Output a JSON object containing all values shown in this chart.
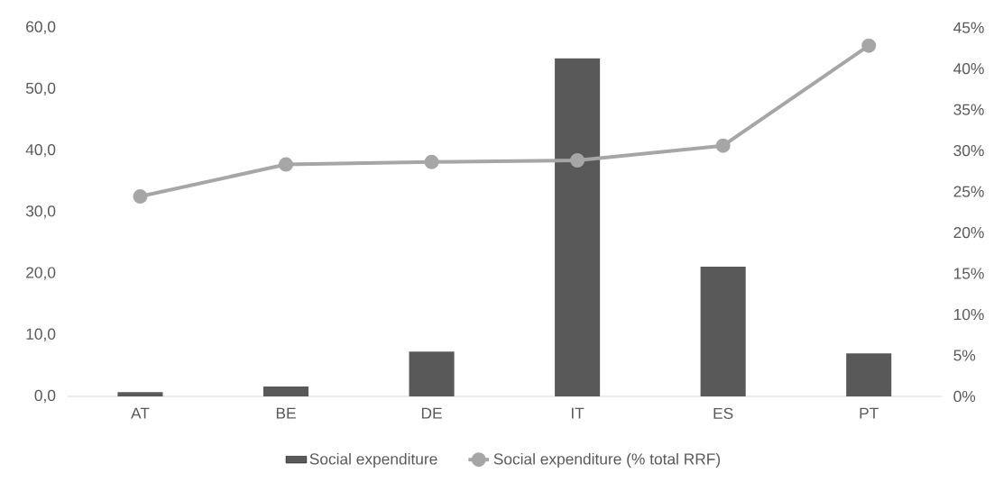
{
  "chart_data": {
    "type": "bar",
    "categories": [
      "AT",
      "BE",
      "DE",
      "IT",
      "ES",
      "PT"
    ],
    "series": [
      {
        "name": "Social expenditure",
        "color": "#595959",
        "values": [
          0.7,
          1.6,
          7.3,
          55.0,
          21.1,
          7.0
        ]
      },
      {
        "name": "Social expenditure (% total RRF)",
        "type": "line",
        "axis": "y2",
        "color": "#a6a6a6",
        "marker": "circle",
        "values": [
          24.4,
          28.3,
          28.6,
          28.8,
          30.6,
          42.8
        ]
      }
    ],
    "ylim": [
      0,
      60
    ],
    "yticks": [
      {
        "value": 0,
        "label": "0,0"
      },
      {
        "value": 10,
        "label": "10,0"
      },
      {
        "value": 20,
        "label": "20,0"
      },
      {
        "value": 30,
        "label": "30,0"
      },
      {
        "value": 40,
        "label": "40,0"
      },
      {
        "value": 50,
        "label": "50,0"
      },
      {
        "value": 60,
        "label": "60,0"
      }
    ],
    "y2lim": [
      0,
      45
    ],
    "y2ticks": [
      {
        "value": 0,
        "label": "0%"
      },
      {
        "value": 5,
        "label": "5%"
      },
      {
        "value": 10,
        "label": "10%"
      },
      {
        "value": 15,
        "label": "15%"
      },
      {
        "value": 20,
        "label": "20%"
      },
      {
        "value": 25,
        "label": "25%"
      },
      {
        "value": 30,
        "label": "30%"
      },
      {
        "value": 35,
        "label": "35%"
      },
      {
        "value": 40,
        "label": "40%"
      },
      {
        "value": 45,
        "label": "45%"
      }
    ],
    "grid": false,
    "legend": "bottom"
  }
}
